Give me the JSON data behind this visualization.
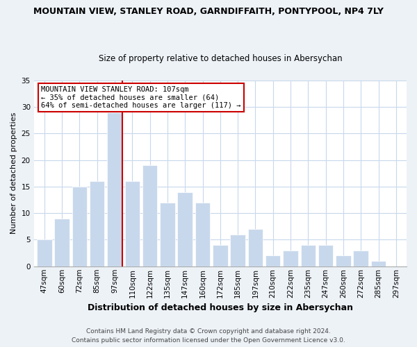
{
  "title": "MOUNTAIN VIEW, STANLEY ROAD, GARNDIFFAITH, PONTYPOOL, NP4 7LY",
  "subtitle": "Size of property relative to detached houses in Abersychan",
  "xlabel": "Distribution of detached houses by size in Abersychan",
  "ylabel": "Number of detached properties",
  "categories": [
    "47sqm",
    "60sqm",
    "72sqm",
    "85sqm",
    "97sqm",
    "110sqm",
    "122sqm",
    "135sqm",
    "147sqm",
    "160sqm",
    "172sqm",
    "185sqm",
    "197sqm",
    "210sqm",
    "222sqm",
    "235sqm",
    "247sqm",
    "260sqm",
    "272sqm",
    "285sqm",
    "297sqm"
  ],
  "values": [
    5,
    9,
    15,
    16,
    29,
    16,
    19,
    12,
    14,
    12,
    4,
    6,
    7,
    2,
    3,
    4,
    4,
    2,
    3,
    1,
    0
  ],
  "bar_color": "#c8d8ec",
  "bar_edge_color": "#ffffff",
  "highlight_bar_index": 4,
  "highlight_line_color": "#cc0000",
  "ylim": [
    0,
    35
  ],
  "yticks": [
    0,
    5,
    10,
    15,
    20,
    25,
    30,
    35
  ],
  "annotation_title": "MOUNTAIN VIEW STANLEY ROAD: 107sqm",
  "annotation_line1": "← 35% of detached houses are smaller (64)",
  "annotation_line2": "64% of semi-detached houses are larger (117) →",
  "annotation_box_facecolor": "#ffffff",
  "annotation_box_edgecolor": "#cc0000",
  "footer_line1": "Contains HM Land Registry data © Crown copyright and database right 2024.",
  "footer_line2": "Contains public sector information licensed under the Open Government Licence v3.0.",
  "fig_facecolor": "#edf2f7",
  "plot_facecolor": "#ffffff",
  "grid_color": "#c8d8ec",
  "title_fontsize": 9,
  "subtitle_fontsize": 8.5,
  "ylabel_fontsize": 8,
  "xlabel_fontsize": 9,
  "tick_fontsize": 7.5,
  "footer_fontsize": 6.5
}
